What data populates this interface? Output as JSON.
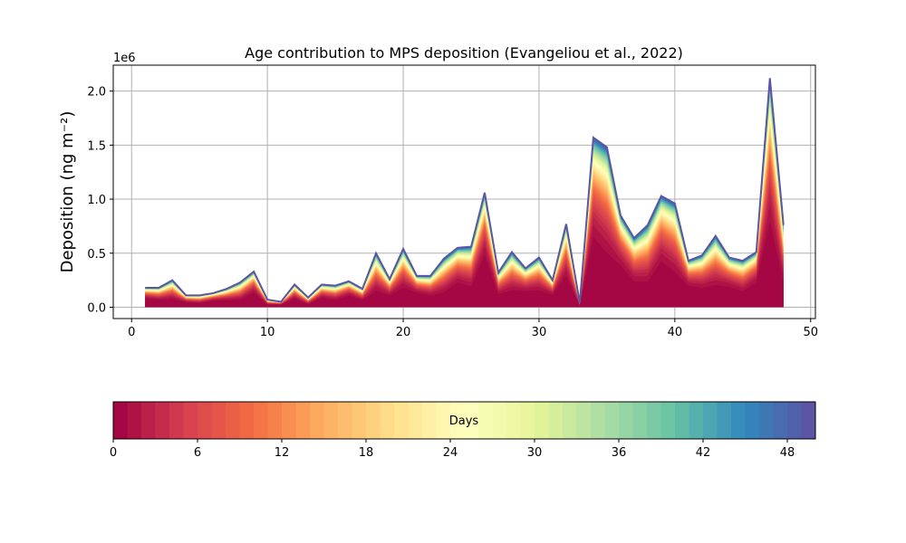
{
  "chart_data": {
    "type": "area",
    "subtype": "stacked",
    "title": "Age contribution to MPS deposition (Evangeliou et al., 2022)",
    "xlabel": "",
    "ylabel": "Deposition (ng m⁻²)",
    "y_scale_label": "1e6",
    "x_ticks": [
      0,
      10,
      20,
      30,
      40,
      50
    ],
    "x_tick_labels": [
      "0",
      "10",
      "20",
      "30",
      "40",
      "50"
    ],
    "y_ticks": [
      0.0,
      0.5,
      1.0,
      1.5,
      2.0
    ],
    "y_tick_labels": [
      "0.0",
      "0.5",
      "1.0",
      "1.5",
      "2.0"
    ],
    "xlim": [
      -1.35,
      50.35
    ],
    "ylim": [
      -0.105,
      2.24
    ],
    "grid": true,
    "x": [
      1,
      2,
      3,
      4,
      5,
      6,
      7,
      8,
      9,
      10,
      11,
      12,
      13,
      14,
      15,
      16,
      17,
      18,
      19,
      20,
      21,
      22,
      23,
      24,
      25,
      26,
      27,
      28,
      29,
      30,
      31,
      32,
      33,
      34,
      35,
      36,
      37,
      38,
      39,
      40,
      41,
      42,
      43,
      44,
      45,
      46,
      47,
      48
    ],
    "total_deposition_1e6": [
      0.18,
      0.18,
      0.25,
      0.11,
      0.11,
      0.13,
      0.17,
      0.23,
      0.33,
      0.07,
      0.05,
      0.21,
      0.09,
      0.21,
      0.2,
      0.24,
      0.17,
      0.5,
      0.26,
      0.54,
      0.29,
      0.29,
      0.45,
      0.55,
      0.56,
      1.06,
      0.32,
      0.51,
      0.36,
      0.46,
      0.25,
      0.77,
      0.04,
      1.57,
      1.48,
      0.85,
      0.64,
      0.76,
      1.03,
      0.96,
      0.43,
      0.48,
      0.66,
      0.46,
      0.43,
      0.51,
      2.12,
      0.76
    ],
    "age_bins_days": 50,
    "colormap": "Spectral",
    "colorbar": {
      "label": "Days",
      "ticks": [
        0,
        6,
        12,
        18,
        24,
        30,
        36,
        42,
        48
      ],
      "tick_labels": [
        "0",
        "6",
        "12",
        "18",
        "24",
        "30",
        "36",
        "42",
        "48"
      ],
      "range": [
        0,
        50
      ]
    },
    "colors": [
      "#9e0142",
      "#d53e4f",
      "#f46d43",
      "#fdae61",
      "#fee08b",
      "#ffffbf",
      "#e6f598",
      "#abdda4",
      "#66c2a5",
      "#3288bd",
      "#5e4fa2"
    ]
  }
}
